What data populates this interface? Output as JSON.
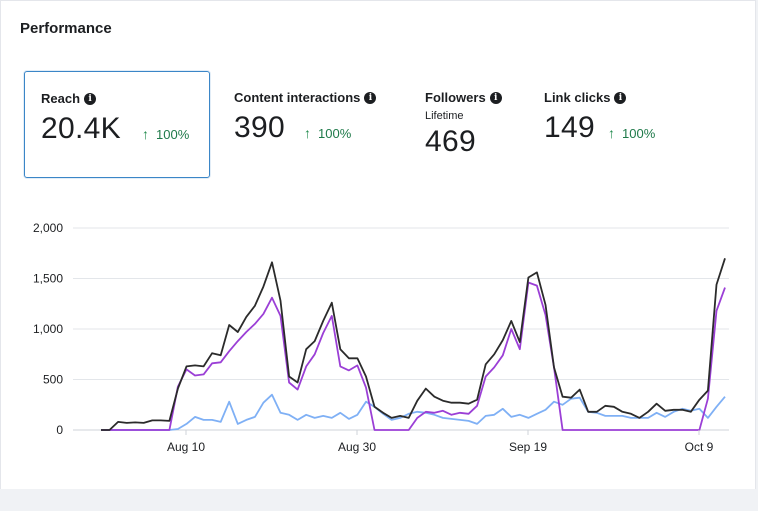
{
  "header": {
    "title": "Performance"
  },
  "metrics": [
    {
      "label": "Reach",
      "value": "20.4K",
      "delta": "100%",
      "sub": ""
    },
    {
      "label": "Content interactions",
      "value": "390",
      "delta": "100%",
      "sub": ""
    },
    {
      "label": "Followers",
      "value": "469",
      "delta": "",
      "sub": "Lifetime"
    },
    {
      "label": "Link clicks",
      "value": "149",
      "delta": "100%",
      "sub": ""
    }
  ],
  "colors": {
    "accent_border": "#3b86c7",
    "delta_green": "#1f7a4a",
    "series_dark": "#2b2b2b",
    "series_purple": "#9b3fd6",
    "series_blue": "#7fb0f5"
  },
  "icons": {
    "info": "info-icon",
    "up_arrow": "arrow-up-icon"
  },
  "chart_data": {
    "type": "line",
    "y_ticks": [
      "2,000",
      "1,500",
      "1,000",
      "500",
      "0"
    ],
    "x_ticks": [
      "Aug 10",
      "Aug 30",
      "Sep 19",
      "Oct 9"
    ],
    "ylim": [
      0,
      2000
    ],
    "grid": true,
    "x_range": [
      "Jul 26",
      "Oct 10"
    ],
    "series": [
      {
        "color": "#2b2b2b",
        "values": [
          0,
          0,
          80,
          70,
          75,
          70,
          95,
          95,
          90,
          410,
          630,
          640,
          630,
          760,
          740,
          1040,
          970,
          1120,
          1230,
          1420,
          1660,
          1280,
          530,
          470,
          800,
          880,
          1080,
          1260,
          800,
          710,
          710,
          530,
          230,
          170,
          120,
          140,
          120,
          290,
          410,
          330,
          290,
          270,
          270,
          260,
          300,
          650,
          750,
          890,
          1080,
          870,
          1510,
          1560,
          1240,
          620,
          330,
          320,
          400,
          180,
          180,
          240,
          230,
          180,
          160,
          120,
          180,
          260,
          190,
          200,
          200,
          180,
          300,
          390,
          1440,
          1700
        ]
      },
      {
        "color": "#9b3fd6",
        "values": [
          0,
          0,
          0,
          0,
          0,
          0,
          0,
          0,
          0,
          430,
          600,
          540,
          550,
          660,
          670,
          780,
          880,
          970,
          1050,
          1150,
          1310,
          1130,
          470,
          400,
          630,
          750,
          960,
          1130,
          630,
          590,
          640,
          420,
          0,
          0,
          0,
          0,
          0,
          120,
          180,
          170,
          190,
          150,
          170,
          160,
          240,
          530,
          620,
          740,
          1000,
          800,
          1460,
          1430,
          1140,
          620,
          0,
          0,
          0,
          0,
          0,
          0,
          0,
          0,
          0,
          0,
          0,
          0,
          0,
          0,
          0,
          0,
          0,
          310,
          1180,
          1410
        ]
      },
      {
        "color": "#7fb0f5",
        "values": [
          0,
          0,
          0,
          0,
          0,
          0,
          0,
          0,
          0,
          10,
          60,
          130,
          100,
          100,
          80,
          280,
          60,
          100,
          130,
          270,
          350,
          170,
          150,
          100,
          150,
          120,
          140,
          120,
          170,
          110,
          150,
          280,
          230,
          160,
          100,
          120,
          160,
          180,
          170,
          150,
          120,
          110,
          100,
          90,
          60,
          140,
          150,
          210,
          130,
          150,
          120,
          160,
          200,
          280,
          250,
          310,
          320,
          180,
          170,
          140,
          140,
          140,
          120,
          120,
          120,
          170,
          130,
          180,
          210,
          190,
          210,
          120,
          230,
          330
        ]
      }
    ]
  }
}
